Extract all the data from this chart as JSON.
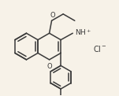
{
  "bg_color": "#f7f2e8",
  "line_color": "#3a3a3a",
  "lw": 1.1,
  "fs": 6.0,
  "figsize": [
    1.51,
    1.22
  ],
  "dpi": 100
}
